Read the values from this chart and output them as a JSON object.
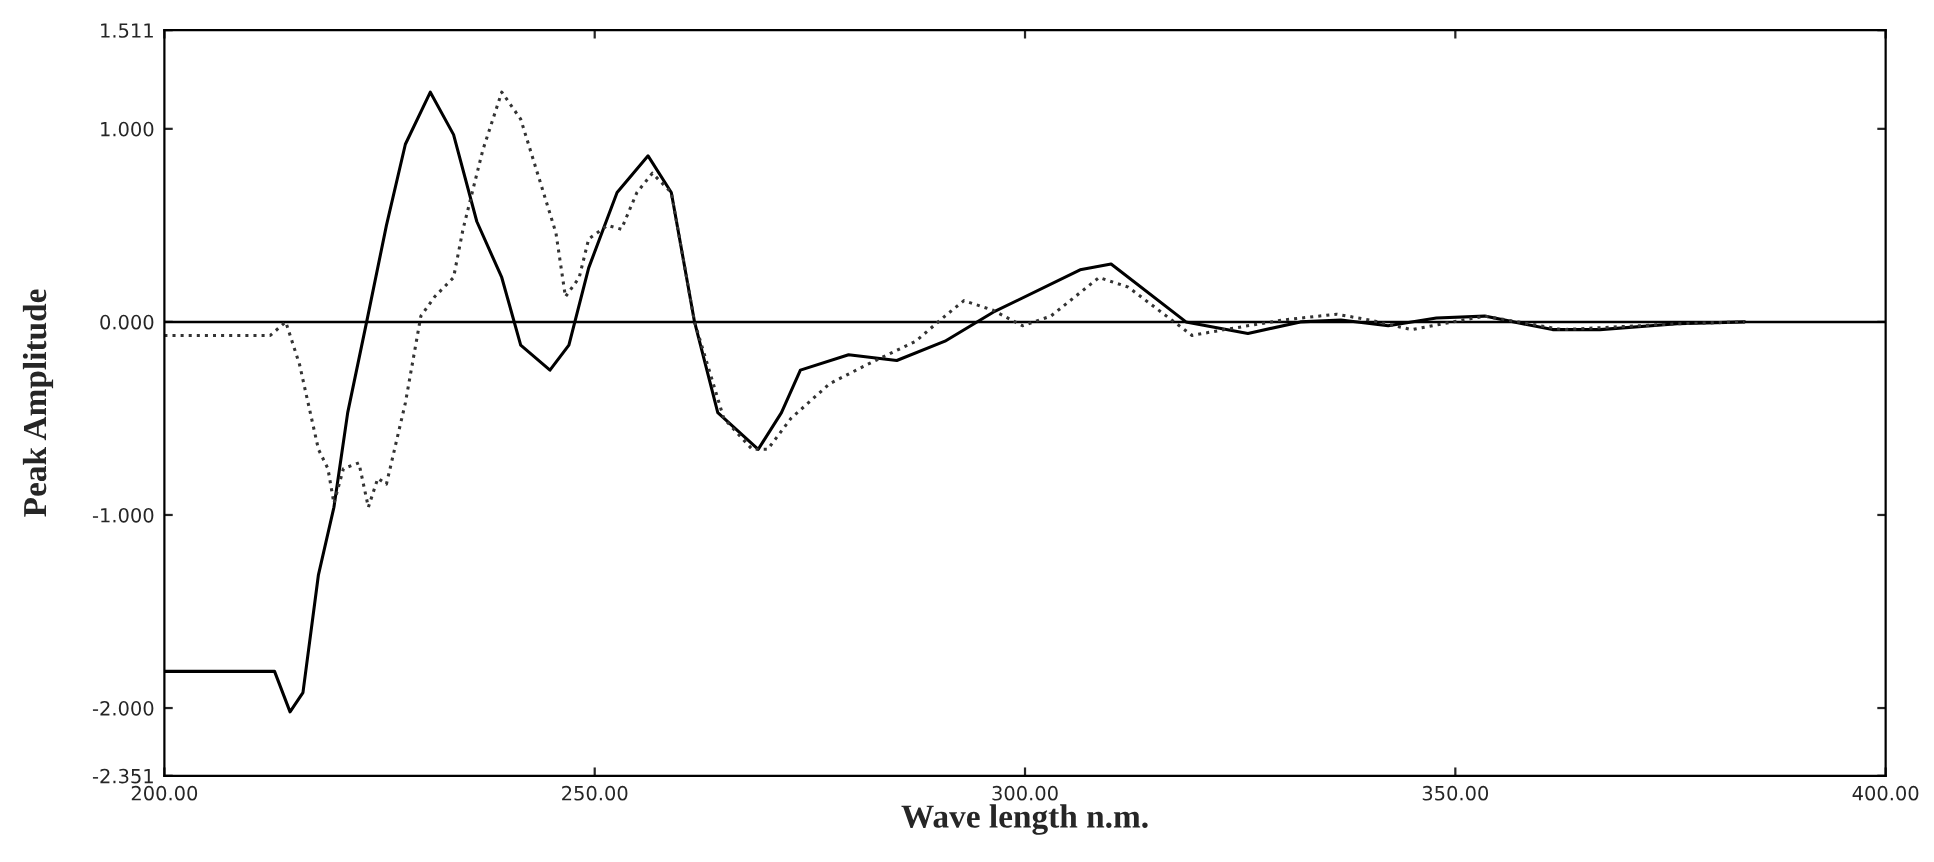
{
  "chart_data": {
    "type": "line",
    "xlabel": "Wave length n.m.",
    "ylabel": "Peak Amplitude",
    "xlim": [
      200,
      400
    ],
    "ylim": [
      -2.351,
      1.511
    ],
    "xticks": [
      {
        "value": 200,
        "label": "200.00"
      },
      {
        "value": 250,
        "label": "250.00"
      },
      {
        "value": 300,
        "label": "300.00"
      },
      {
        "value": 350,
        "label": "350.00"
      },
      {
        "value": 400,
        "label": "400.00"
      }
    ],
    "yticks": [
      {
        "value": -2.351,
        "label": "-2.351"
      },
      {
        "value": -2,
        "label": "-2.000"
      },
      {
        "value": -1,
        "label": "-1.000"
      },
      {
        "value": 0,
        "label": "0.000"
      },
      {
        "value": 1,
        "label": "1.000"
      },
      {
        "value": 1.511,
        "label": "1.511"
      }
    ],
    "grid": false,
    "ref_lines": [
      {
        "axis": "y",
        "value": 0,
        "color": "#000000",
        "line_style": "solid"
      }
    ],
    "series": [
      {
        "color": "#000000",
        "line_style": "solid",
        "x": [
          200,
          212.8,
          214.6,
          216.1,
          217.9,
          219.7,
          221.3,
          223.5,
          225.8,
          228,
          230.9,
          233.6,
          236.3,
          239.2,
          241.4,
          244.8,
          247,
          249.3,
          252.6,
          256.2,
          258.9,
          261.6,
          264.3,
          269,
          271.7,
          273.9,
          279.5,
          285.1,
          290.7,
          296.3,
          306.4,
          310,
          318.7,
          325.9,
          332,
          336.7,
          342.2,
          347.8,
          353.4,
          361.3,
          366.8,
          375.8,
          383.6
        ],
        "values": [
          -1.81,
          -1.81,
          -2.02,
          -1.92,
          -1.31,
          -0.96,
          -0.47,
          0,
          0.5,
          0.92,
          1.19,
          0.97,
          0.52,
          0.23,
          -0.12,
          -0.25,
          -0.12,
          0.28,
          0.67,
          0.86,
          0.67,
          0,
          -0.47,
          -0.66,
          -0.47,
          -0.25,
          -0.17,
          -0.2,
          -0.1,
          0.05,
          0.27,
          0.3,
          0,
          -0.06,
          0,
          0.01,
          -0.02,
          0.02,
          0.03,
          -0.04,
          -0.04,
          -0.01,
          0
        ]
      },
      {
        "color": "#333333",
        "line_style": "dotted",
        "x": [
          200,
          212.3,
          214.1,
          215.7,
          217.9,
          219,
          219.7,
          220.8,
          222.6,
          223.7,
          224.8,
          225.8,
          228,
          229.8,
          231.4,
          233.6,
          234.7,
          237,
          239.2,
          241.4,
          243.7,
          245.5,
          246.6,
          248.2,
          249.3,
          251.5,
          253.1,
          254.9,
          256.7,
          258.9,
          261.6,
          265,
          268.3,
          270.1,
          272.8,
          277.3,
          281.7,
          287.3,
          290.7,
          292.9,
          296.3,
          299.7,
          303,
          308.6,
          312,
          319.4,
          323.2,
          330,
          336.2,
          340,
          344.9,
          353.4,
          362.4,
          375.8,
          383.6
        ],
        "values": [
          -0.07,
          -0.07,
          0,
          -0.22,
          -0.66,
          -0.76,
          -0.94,
          -0.76,
          -0.73,
          -0.96,
          -0.81,
          -0.84,
          -0.42,
          0.03,
          0.13,
          0.23,
          0.48,
          0.89,
          1.19,
          1.05,
          0.72,
          0.46,
          0.13,
          0.23,
          0.43,
          0.5,
          0.48,
          0.67,
          0.77,
          0.67,
          0,
          -0.5,
          -0.66,
          -0.66,
          -0.5,
          -0.32,
          -0.22,
          -0.1,
          0.03,
          0.11,
          0.06,
          -0.02,
          0.03,
          0.23,
          0.18,
          -0.07,
          -0.04,
          0.01,
          0.04,
          0.01,
          -0.04,
          0.03,
          -0.04,
          -0.01,
          0
        ]
      }
    ]
  }
}
